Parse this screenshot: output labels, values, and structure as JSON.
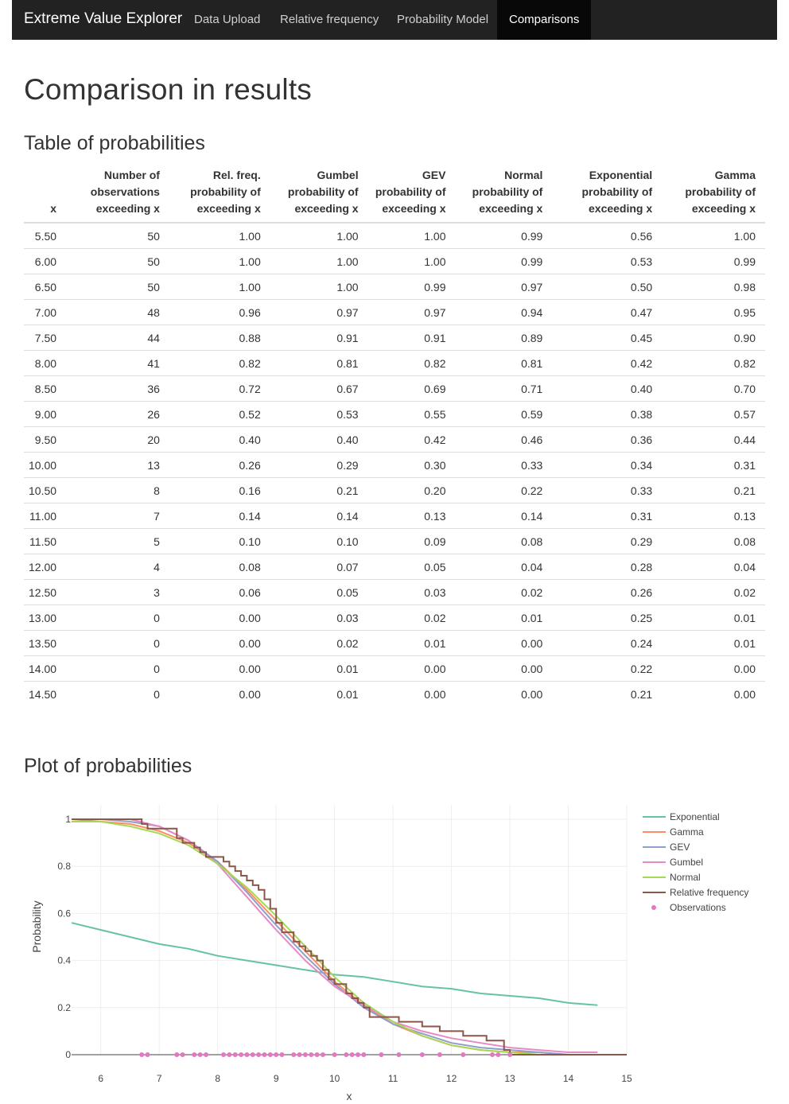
{
  "app": {
    "brand": "Extreme Value Explorer",
    "nav": [
      "Data Upload",
      "Relative frequency",
      "Probability Model",
      "Comparisons"
    ],
    "active_tab": "Comparisons"
  },
  "page": {
    "title": "Comparison in results",
    "table_heading": "Table of probabilities",
    "plot_heading": "Plot of probabilities"
  },
  "table": {
    "headers": [
      "x",
      "Number of observations exceeding x",
      "Rel. freq. probability of exceeding x",
      "Gumbel probability of exceeding x",
      "GEV probability of exceeding x",
      "Normal probability of exceeding x",
      "Exponential probability of exceeding x",
      "Gamma probability of exceeding x"
    ],
    "rows": [
      [
        "5.50",
        "50",
        "1.00",
        "1.00",
        "1.00",
        "0.99",
        "0.56",
        "1.00"
      ],
      [
        "6.00",
        "50",
        "1.00",
        "1.00",
        "1.00",
        "0.99",
        "0.53",
        "0.99"
      ],
      [
        "6.50",
        "50",
        "1.00",
        "1.00",
        "0.99",
        "0.97",
        "0.50",
        "0.98"
      ],
      [
        "7.00",
        "48",
        "0.96",
        "0.97",
        "0.97",
        "0.94",
        "0.47",
        "0.95"
      ],
      [
        "7.50",
        "44",
        "0.88",
        "0.91",
        "0.91",
        "0.89",
        "0.45",
        "0.90"
      ],
      [
        "8.00",
        "41",
        "0.82",
        "0.81",
        "0.82",
        "0.81",
        "0.42",
        "0.82"
      ],
      [
        "8.50",
        "36",
        "0.72",
        "0.67",
        "0.69",
        "0.71",
        "0.40",
        "0.70"
      ],
      [
        "9.00",
        "26",
        "0.52",
        "0.53",
        "0.55",
        "0.59",
        "0.38",
        "0.57"
      ],
      [
        "9.50",
        "20",
        "0.40",
        "0.40",
        "0.42",
        "0.46",
        "0.36",
        "0.44"
      ],
      [
        "10.00",
        "13",
        "0.26",
        "0.29",
        "0.30",
        "0.33",
        "0.34",
        "0.31"
      ],
      [
        "10.50",
        "8",
        "0.16",
        "0.21",
        "0.20",
        "0.22",
        "0.33",
        "0.21"
      ],
      [
        "11.00",
        "7",
        "0.14",
        "0.14",
        "0.13",
        "0.14",
        "0.31",
        "0.13"
      ],
      [
        "11.50",
        "5",
        "0.10",
        "0.10",
        "0.09",
        "0.08",
        "0.29",
        "0.08"
      ],
      [
        "12.00",
        "4",
        "0.08",
        "0.07",
        "0.05",
        "0.04",
        "0.28",
        "0.04"
      ],
      [
        "12.50",
        "3",
        "0.06",
        "0.05",
        "0.03",
        "0.02",
        "0.26",
        "0.02"
      ],
      [
        "13.00",
        "0",
        "0.00",
        "0.03",
        "0.02",
        "0.01",
        "0.25",
        "0.01"
      ],
      [
        "13.50",
        "0",
        "0.00",
        "0.02",
        "0.01",
        "0.00",
        "0.24",
        "0.01"
      ],
      [
        "14.00",
        "0",
        "0.00",
        "0.01",
        "0.00",
        "0.00",
        "0.22",
        "0.00"
      ],
      [
        "14.50",
        "0",
        "0.00",
        "0.01",
        "0.00",
        "0.00",
        "0.21",
        "0.00"
      ]
    ]
  },
  "chart_data": {
    "type": "line",
    "xlabel": "x",
    "ylabel": "Probability",
    "xlim": [
      5.5,
      15
    ],
    "ylim": [
      0,
      1
    ],
    "x_ticks": [
      6,
      7,
      8,
      9,
      10,
      11,
      12,
      13,
      14,
      15
    ],
    "y_ticks": [
      0,
      0.2,
      0.4,
      0.6,
      0.8,
      1
    ],
    "y_tick_labels": [
      "0",
      "0.2",
      "0.4",
      "0.6",
      "0.8",
      "1"
    ],
    "grid": true,
    "legend_position": "right",
    "series": [
      {
        "name": "Exponential",
        "color": "#66c2a5",
        "x": [
          5.5,
          6,
          6.5,
          7,
          7.5,
          8,
          8.5,
          9,
          9.5,
          10,
          10.5,
          11,
          11.5,
          12,
          12.5,
          13,
          13.5,
          14,
          14.5
        ],
        "y": [
          0.56,
          0.53,
          0.5,
          0.47,
          0.45,
          0.42,
          0.4,
          0.38,
          0.36,
          0.34,
          0.33,
          0.31,
          0.29,
          0.28,
          0.26,
          0.25,
          0.24,
          0.22,
          0.21
        ]
      },
      {
        "name": "Gamma",
        "color": "#fc8d62",
        "x": [
          5.5,
          6,
          6.5,
          7,
          7.5,
          8,
          8.5,
          9,
          9.5,
          10,
          10.5,
          11,
          11.5,
          12,
          12.5,
          13,
          13.5,
          14,
          14.5,
          15
        ],
        "y": [
          1.0,
          0.99,
          0.98,
          0.95,
          0.9,
          0.82,
          0.7,
          0.57,
          0.44,
          0.31,
          0.21,
          0.13,
          0.08,
          0.04,
          0.02,
          0.01,
          0.01,
          0.0,
          0.0,
          0.0
        ]
      },
      {
        "name": "GEV",
        "color": "#8da0cb",
        "x": [
          5.5,
          6,
          6.5,
          7,
          7.5,
          8,
          8.5,
          9,
          9.5,
          10,
          10.5,
          11,
          11.5,
          12,
          12.5,
          13,
          13.5,
          14,
          14.5,
          15
        ],
        "y": [
          1.0,
          1.0,
          0.99,
          0.97,
          0.91,
          0.82,
          0.69,
          0.55,
          0.42,
          0.3,
          0.2,
          0.13,
          0.09,
          0.05,
          0.03,
          0.02,
          0.01,
          0.0,
          0.0,
          0.0
        ]
      },
      {
        "name": "Gumbel",
        "color": "#e78ac3",
        "x": [
          5.5,
          6,
          6.5,
          7,
          7.5,
          8,
          8.5,
          9,
          9.5,
          10,
          10.5,
          11,
          11.5,
          12,
          12.5,
          13,
          13.5,
          14,
          14.5
        ],
        "y": [
          1.0,
          1.0,
          1.0,
          0.97,
          0.91,
          0.81,
          0.67,
          0.53,
          0.4,
          0.29,
          0.21,
          0.14,
          0.1,
          0.07,
          0.05,
          0.03,
          0.02,
          0.01,
          0.01
        ]
      },
      {
        "name": "Normal",
        "color": "#a6d854",
        "x": [
          5.5,
          6,
          6.5,
          7,
          7.5,
          8,
          8.5,
          9,
          9.5,
          10,
          10.5,
          11,
          11.5,
          12,
          12.5,
          13,
          13.5,
          14,
          14.5,
          15
        ],
        "y": [
          0.99,
          0.99,
          0.97,
          0.94,
          0.89,
          0.81,
          0.71,
          0.59,
          0.46,
          0.33,
          0.22,
          0.14,
          0.08,
          0.04,
          0.02,
          0.01,
          0.0,
          0.0,
          0.0,
          0.0
        ]
      }
    ],
    "relative_frequency": {
      "name": "Relative frequency",
      "color": "#8c564b",
      "x": [
        5.5,
        6.7,
        6.8,
        7.3,
        7.4,
        7.6,
        7.7,
        7.8,
        8.1,
        8.2,
        8.3,
        8.4,
        8.5,
        8.6,
        8.7,
        8.8,
        8.9,
        9.0,
        9.1,
        9.3,
        9.4,
        9.5,
        9.6,
        9.7,
        9.8,
        9.9,
        10.0,
        10.2,
        10.3,
        10.4,
        10.5,
        10.6,
        10.8,
        11.1,
        11.5,
        11.8,
        12.2,
        12.6,
        12.9,
        13.0,
        15.0
      ],
      "y": [
        1.0,
        0.98,
        0.96,
        0.92,
        0.9,
        0.88,
        0.86,
        0.84,
        0.82,
        0.8,
        0.78,
        0.76,
        0.74,
        0.72,
        0.7,
        0.66,
        0.62,
        0.56,
        0.52,
        0.48,
        0.46,
        0.44,
        0.42,
        0.4,
        0.36,
        0.32,
        0.3,
        0.26,
        0.24,
        0.22,
        0.2,
        0.16,
        0.16,
        0.14,
        0.12,
        0.1,
        0.08,
        0.06,
        0.02,
        0.0,
        0.0
      ]
    },
    "observations": {
      "name": "Observations",
      "color": "#e377c2",
      "x": [
        6.7,
        6.8,
        7.3,
        7.4,
        7.6,
        7.7,
        7.8,
        8.1,
        8.2,
        8.3,
        8.4,
        8.5,
        8.6,
        8.7,
        8.8,
        8.9,
        9.0,
        9.1,
        9.3,
        9.4,
        9.5,
        9.6,
        9.7,
        9.8,
        10.0,
        10.2,
        10.3,
        10.4,
        10.5,
        10.8,
        11.1,
        11.5,
        11.8,
        12.2,
        12.7,
        12.8,
        13.0
      ]
    }
  }
}
